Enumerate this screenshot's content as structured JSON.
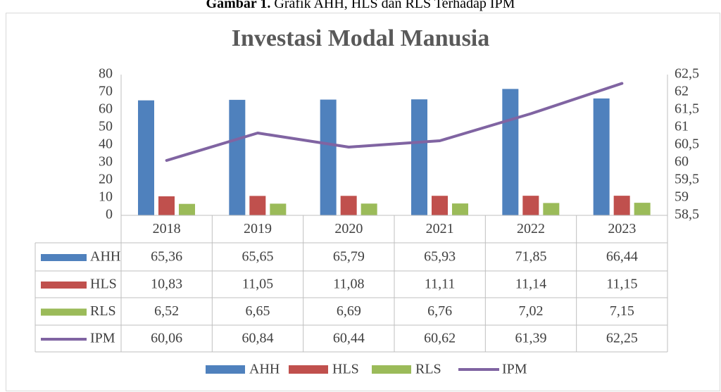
{
  "caption_label": "Gambar 1.",
  "caption_text": "Grafik AHH, HLS dan RLS Terhadap IPM",
  "chart_data": {
    "type": "bar",
    "title": "Investasi Modal Manusia",
    "categories": [
      "2018",
      "2019",
      "2020",
      "2021",
      "2022",
      "2023"
    ],
    "series": [
      {
        "name": "AHH",
        "color": "#4f81bd",
        "values": [
          65.36,
          65.65,
          65.79,
          65.93,
          71.85,
          66.44
        ],
        "value_labels": [
          "65,36",
          "65,65",
          "65,79",
          "65,93",
          "71,85",
          "66,44"
        ]
      },
      {
        "name": "HLS",
        "color": "#c0504d",
        "values": [
          10.83,
          11.05,
          11.08,
          11.11,
          11.14,
          11.15
        ],
        "value_labels": [
          "10,83",
          "11,05",
          "11,08",
          "11,11",
          "11,14",
          "11,15"
        ]
      },
      {
        "name": "RLS",
        "color": "#9bbb59",
        "values": [
          6.52,
          6.65,
          6.69,
          6.76,
          7.02,
          7.15
        ],
        "value_labels": [
          "6,52",
          "6,65",
          "6,69",
          "6,76",
          "7,02",
          "7,15"
        ]
      },
      {
        "name": "IPM",
        "color": "#8064a2",
        "type": "line",
        "axis": "y2",
        "values": [
          60.06,
          60.84,
          60.44,
          60.62,
          61.39,
          62.25
        ],
        "value_labels": [
          "60,06",
          "60,84",
          "60,44",
          "60,62",
          "61,39",
          "62,25"
        ]
      }
    ],
    "ylim": [
      0,
      80
    ],
    "yticks": [
      0,
      10,
      20,
      30,
      40,
      50,
      60,
      70,
      80
    ],
    "y2lim": [
      58.5,
      62.5
    ],
    "y2ticks": [
      {
        "value": 58.5,
        "label": "58,5"
      },
      59,
      {
        "value": 59.5,
        "label": "59,5"
      },
      60,
      {
        "value": 60.5,
        "label": "60,5"
      },
      61,
      {
        "value": 61.5,
        "label": "61,5"
      },
      62,
      {
        "value": 62.5,
        "label": "62,5"
      }
    ],
    "data_table": true,
    "legend": "bottom"
  }
}
